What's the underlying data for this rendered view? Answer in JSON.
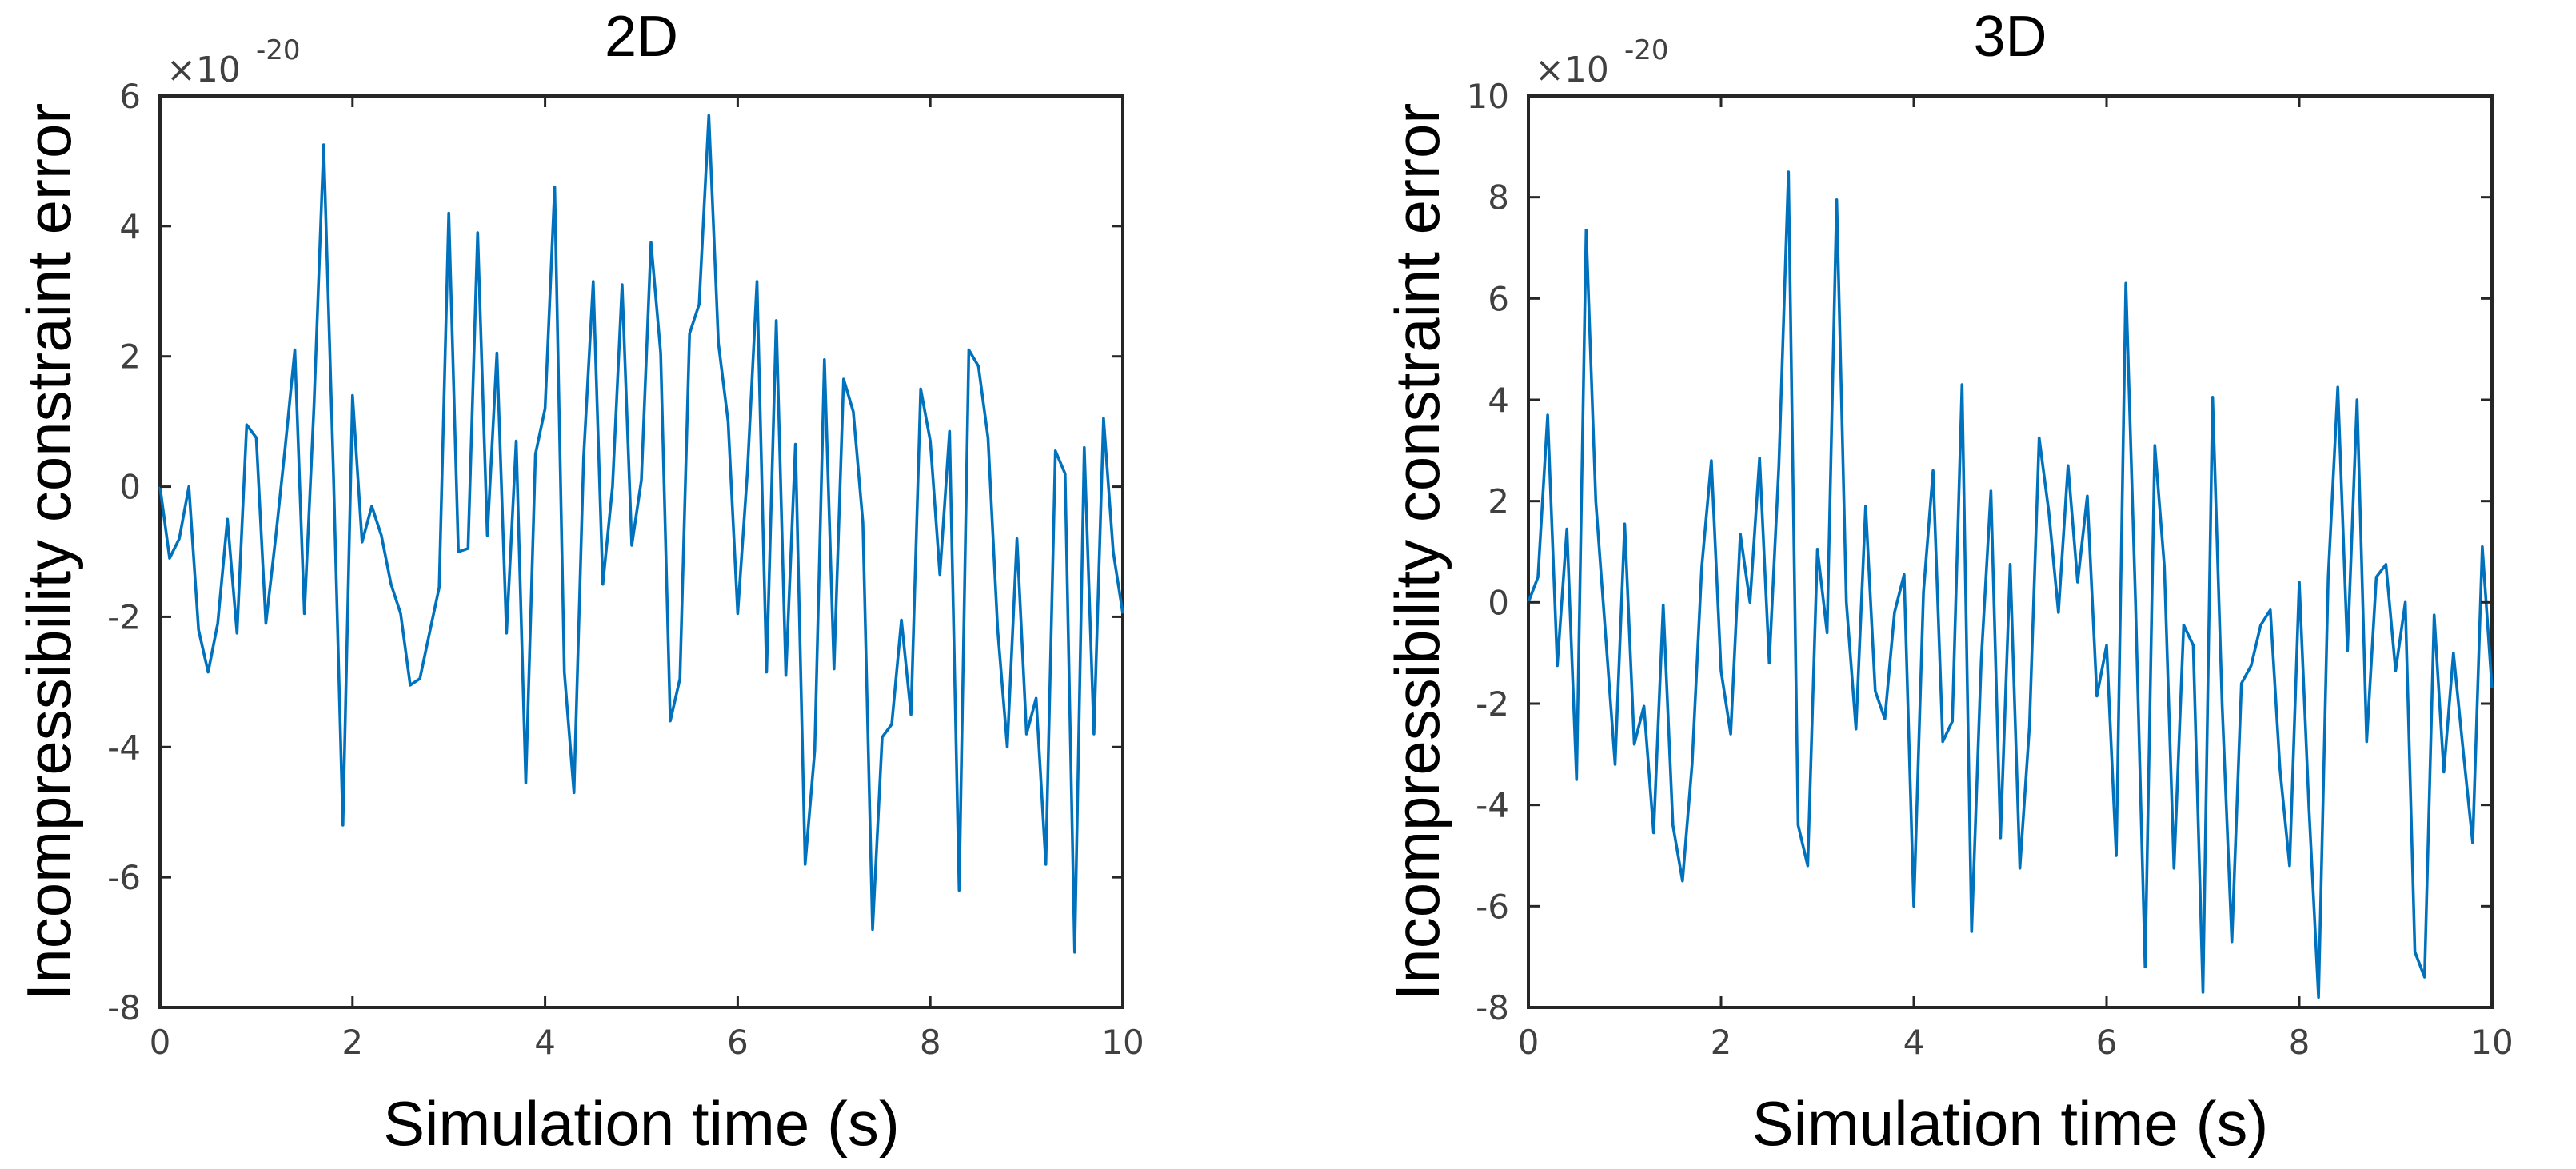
{
  "chart_data": [
    {
      "type": "line",
      "title": "2D",
      "xlabel": "Simulation time (s)",
      "ylabel": "Incompressibility constraint error",
      "y_exponent_base": "×10",
      "y_exponent_power": "-20",
      "xlim": [
        0,
        10
      ],
      "ylim": [
        -8,
        6
      ],
      "xticks": [
        0,
        2,
        4,
        6,
        8,
        10
      ],
      "xtick_labels": [
        "0",
        "2",
        "4",
        "6",
        "8",
        "10"
      ],
      "yticks": [
        -8,
        -6,
        -4,
        -2,
        0,
        2,
        4,
        6
      ],
      "ytick_labels": [
        "-8",
        "-6",
        "-4",
        "-2",
        "0",
        "2",
        "4",
        "6"
      ],
      "color": "#0072BD",
      "series": [
        {
          "name": "2D",
          "x": [
            0,
            0.1,
            0.2,
            0.3,
            0.4,
            0.5,
            0.6,
            0.7,
            0.8,
            0.9,
            1.0,
            1.1,
            1.2,
            1.3,
            1.4,
            1.5,
            1.6,
            1.7,
            1.8,
            1.9,
            2.0,
            2.1,
            2.2,
            2.3,
            2.4,
            2.5,
            2.6,
            2.7,
            2.8,
            2.9,
            3.0,
            3.1,
            3.2,
            3.3,
            3.4,
            3.5,
            3.6,
            3.7,
            3.8,
            3.9,
            4.0,
            4.1,
            4.2,
            4.3,
            4.4,
            4.5,
            4.6,
            4.7,
            4.8,
            4.9,
            5.0,
            5.1,
            5.2,
            5.3,
            5.4,
            5.5,
            5.6,
            5.7,
            5.8,
            5.9,
            6.0,
            6.1,
            6.2,
            6.3,
            6.4,
            6.5,
            6.6,
            6.7,
            6.8,
            6.9,
            7.0,
            7.1,
            7.2,
            7.3,
            7.4,
            7.5,
            7.6,
            7.7,
            7.8,
            7.9,
            8.0,
            8.1,
            8.2,
            8.3,
            8.4,
            8.5,
            8.6,
            8.7,
            8.8,
            8.9,
            9.0,
            9.1,
            9.2,
            9.3,
            9.4,
            9.5,
            9.6,
            9.7,
            9.8,
            9.9,
            10.0
          ],
          "y": [
            0.0,
            -1.1,
            -0.8,
            0.0,
            -2.2,
            -2.85,
            -2.1,
            -0.5,
            -2.25,
            0.95,
            0.75,
            -2.1,
            -0.8,
            0.6,
            2.1,
            -1.95,
            1.25,
            5.25,
            0.3,
            -5.2,
            1.4,
            -0.85,
            -0.3,
            -0.75,
            -1.5,
            -1.95,
            -3.05,
            -2.95,
            -2.25,
            -1.55,
            4.2,
            -1.0,
            -0.95,
            3.9,
            -0.75,
            2.05,
            -2.25,
            0.7,
            -4.55,
            0.5,
            1.2,
            4.6,
            -2.85,
            -4.7,
            0.45,
            3.15,
            -1.5,
            0.0,
            3.1,
            -0.9,
            0.1,
            3.75,
            2.05,
            -3.6,
            -2.95,
            2.35,
            2.8,
            5.7,
            2.2,
            1.0,
            -1.95,
            0.2,
            3.15,
            -2.85,
            2.55,
            -2.9,
            0.65,
            -5.8,
            -4.05,
            1.95,
            -2.8,
            1.65,
            1.15,
            -0.55,
            -6.8,
            -3.85,
            -3.65,
            -2.05,
            -3.5,
            1.5,
            0.7,
            -1.35,
            0.85,
            -6.2,
            2.1,
            1.85,
            0.75,
            -2.2,
            -4.0,
            -0.8,
            -3.8,
            -3.25,
            -5.8,
            0.55,
            0.2,
            -7.15,
            0.6,
            -3.8,
            1.05,
            -1.0,
            -1.95
          ]
        }
      ]
    },
    {
      "type": "line",
      "title": "3D",
      "xlabel": "Simulation time (s)",
      "ylabel": "Incompressibility constraint error",
      "y_exponent_base": "×10",
      "y_exponent_power": "-20",
      "xlim": [
        0,
        10
      ],
      "ylim": [
        -8,
        10
      ],
      "xticks": [
        0,
        2,
        4,
        6,
        8,
        10
      ],
      "xtick_labels": [
        "0",
        "2",
        "4",
        "6",
        "8",
        "10"
      ],
      "yticks": [
        -8,
        -6,
        -4,
        -2,
        0,
        2,
        4,
        6,
        8,
        10
      ],
      "ytick_labels": [
        "-8",
        "-6",
        "-4",
        "-2",
        "0",
        "2",
        "4",
        "6",
        "8",
        "10"
      ],
      "color": "#0072BD",
      "series": [
        {
          "name": "3D",
          "x": [
            0,
            0.1,
            0.2,
            0.3,
            0.4,
            0.5,
            0.6,
            0.7,
            0.8,
            0.9,
            1.0,
            1.1,
            1.2,
            1.3,
            1.4,
            1.5,
            1.6,
            1.7,
            1.8,
            1.9,
            2.0,
            2.1,
            2.2,
            2.3,
            2.4,
            2.5,
            2.6,
            2.7,
            2.8,
            2.9,
            3.0,
            3.1,
            3.2,
            3.3,
            3.4,
            3.5,
            3.6,
            3.7,
            3.8,
            3.9,
            4.0,
            4.1,
            4.2,
            4.3,
            4.4,
            4.5,
            4.6,
            4.7,
            4.8,
            4.9,
            5.0,
            5.1,
            5.2,
            5.3,
            5.4,
            5.5,
            5.6,
            5.7,
            5.8,
            5.9,
            6.0,
            6.1,
            6.2,
            6.3,
            6.4,
            6.5,
            6.6,
            6.7,
            6.8,
            6.9,
            7.0,
            7.1,
            7.2,
            7.3,
            7.4,
            7.5,
            7.6,
            7.7,
            7.8,
            7.9,
            8.0,
            8.1,
            8.2,
            8.3,
            8.4,
            8.5,
            8.6,
            8.7,
            8.8,
            8.9,
            9.0,
            9.1,
            9.2,
            9.3,
            9.4,
            9.5,
            9.6,
            9.7,
            9.8,
            9.9,
            10.0
          ],
          "y": [
            0.0,
            0.5,
            3.7,
            -1.25,
            1.45,
            -3.5,
            7.35,
            2.0,
            -0.6,
            -3.2,
            1.55,
            -2.8,
            -2.05,
            -4.55,
            -0.05,
            -4.4,
            -5.5,
            -3.2,
            0.7,
            2.8,
            -1.35,
            -2.6,
            1.35,
            0.0,
            2.85,
            -1.2,
            2.7,
            8.5,
            -4.4,
            -5.2,
            1.05,
            -0.6,
            7.95,
            0.0,
            -2.5,
            1.9,
            -1.75,
            -2.3,
            -0.2,
            0.55,
            -6.0,
            0.2,
            2.6,
            -2.75,
            -2.35,
            4.3,
            -6.5,
            -1.15,
            2.2,
            -4.65,
            0.75,
            -5.25,
            -2.45,
            3.25,
            1.8,
            -0.2,
            2.7,
            0.4,
            2.1,
            -1.85,
            -0.85,
            -5.0,
            6.3,
            0.0,
            -7.2,
            3.1,
            0.7,
            -5.25,
            -0.45,
            -0.85,
            -7.7,
            4.05,
            -2.05,
            -6.7,
            -1.6,
            -1.25,
            -0.45,
            -0.15,
            -3.3,
            -5.2,
            0.4,
            -4.05,
            -7.8,
            0.5,
            4.25,
            -0.95,
            4.0,
            -2.75,
            0.5,
            0.75,
            -1.35,
            0.0,
            -6.9,
            -7.4,
            -0.25,
            -3.35,
            -1.0,
            -2.9,
            -4.75,
            1.1,
            -1.7
          ]
        }
      ]
    }
  ]
}
